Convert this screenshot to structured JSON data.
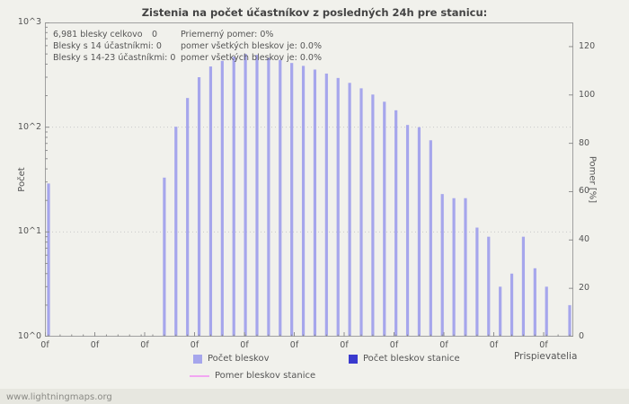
{
  "title": "Zistenia na počet účastníkov z posledných 24h pre stanicu:",
  "stats": {
    "line1_col1": "6,981 blesky celkovo",
    "line1_col2": "0",
    "line1_col3": "Priemerný pomer: 0%",
    "line2_col1": "Blesky s 14 účastníkmi: 0",
    "line2_col2": "pomer všetkých bleskov je: 0.0%",
    "line3_col1": "Blesky s 14-23 účastníkmi: 0",
    "line3_col2": "pomer všetkých bleskov je: 0.0%"
  },
  "axes": {
    "y_left_label": "Počet",
    "y_right_label": "Pomer [%]",
    "x_label": "Prispievatelia",
    "y_left_ticks": [
      "10^0",
      "10^1",
      "10^2",
      "10^3"
    ],
    "y_right_ticks": [
      0,
      20,
      40,
      60,
      80,
      100,
      120
    ],
    "y_right_max": 130,
    "x_tick_label": "0f",
    "x_tick_count": 11
  },
  "legend": [
    {
      "label": "Počet bleskov",
      "type": "square",
      "color": "#a6a6ec"
    },
    {
      "label": "Počet bleskov stanice",
      "type": "square",
      "color": "#3a3ace"
    },
    {
      "label": "Pomer bleskov stanice",
      "type": "line",
      "color": "#f2a6f2"
    }
  ],
  "footer": "www.lightningmaps.org",
  "colors": {
    "bar": "#a6a6ec",
    "bar_station": "#3a3ace",
    "ratio_line": "#f2a6f2",
    "grid": "#c9c9c9",
    "axis": "#a0a0a0",
    "tick": "#8f8f8f"
  },
  "chart_data": {
    "type": "bar",
    "title": "Zistenia na počet účastníkov z posledných 24h pre stanicu:",
    "xlabel": "Prispievatelia",
    "ylabel": "Počet",
    "y2label": "Pomer [%]",
    "y_scale": "log",
    "ylim": [
      1,
      1000
    ],
    "y2lim": [
      0,
      130
    ],
    "grid": true,
    "legend_position": "bottom",
    "series": [
      {
        "name": "Počet bleskov",
        "type": "bar",
        "axis": "left",
        "values": [
          29,
          0,
          0,
          0,
          0,
          0,
          0,
          0,
          0,
          0,
          33,
          101,
          190,
          300,
          380,
          430,
          470,
          500,
          490,
          460,
          440,
          410,
          385,
          355,
          325,
          295,
          265,
          235,
          205,
          175,
          145,
          105,
          100,
          75,
          23,
          21,
          21,
          11,
          9,
          3,
          4,
          9,
          4.5,
          3,
          0,
          2
        ]
      },
      {
        "name": "Počet bleskov stanice",
        "type": "bar",
        "axis": "left",
        "values": [
          0,
          0,
          0,
          0,
          0,
          0,
          0,
          0,
          0,
          0,
          0,
          0,
          0,
          0,
          0,
          0,
          0,
          0,
          0,
          0,
          0,
          0,
          0,
          0,
          0,
          0,
          0,
          0,
          0,
          0,
          0,
          0,
          0,
          0,
          0,
          0,
          0,
          0,
          0,
          0,
          0,
          0,
          0,
          0,
          0,
          0
        ]
      },
      {
        "name": "Pomer bleskov stanice",
        "type": "line",
        "axis": "right",
        "values": [
          0,
          0,
          0,
          0,
          0,
          0,
          0,
          0,
          0,
          0,
          0,
          0,
          0,
          0,
          0,
          0,
          0,
          0,
          0,
          0,
          0,
          0,
          0,
          0,
          0,
          0,
          0,
          0,
          0,
          0,
          0,
          0,
          0,
          0,
          0,
          0,
          0,
          0,
          0,
          0,
          0,
          0,
          0,
          0,
          0,
          0
        ]
      }
    ]
  }
}
